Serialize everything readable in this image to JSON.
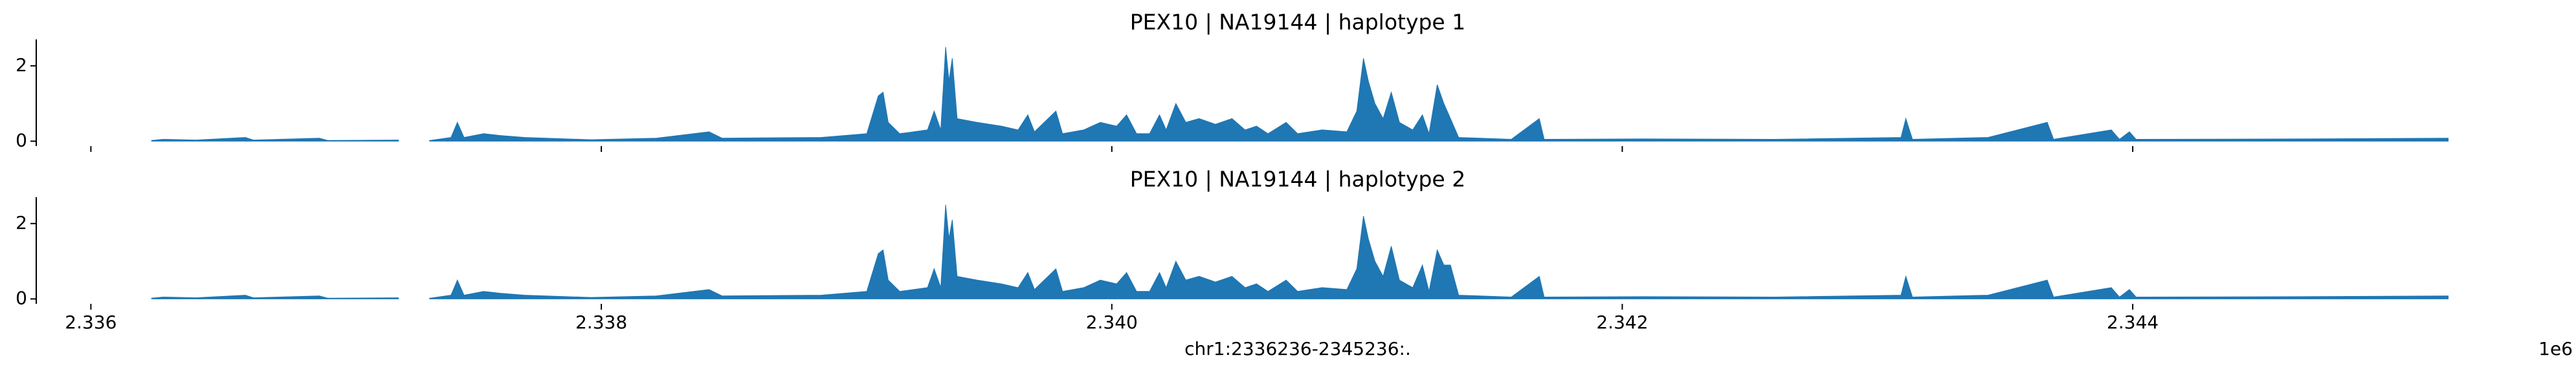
{
  "chart_data": [
    {
      "type": "area",
      "title": "PEX10 | NA19144 | haplotype 1",
      "x": [
        2336238,
        2336283,
        2336412,
        2336605,
        2336638,
        2336895,
        2336928,
        2337205,
        2337266,
        2337327,
        2337411,
        2337436,
        2337462,
        2337539,
        2337604,
        2337700,
        2337958,
        2338216,
        2338422,
        2338473,
        2338860,
        2339040,
        2339085,
        2339104,
        2339124,
        2339169,
        2339278,
        2339304,
        2339330,
        2339349,
        2339362,
        2339375,
        2339394,
        2339472,
        2339568,
        2339633,
        2339671,
        2339697,
        2339781,
        2339807,
        2339890,
        2339955,
        2340019,
        2340058,
        2340097,
        2340148,
        2340187,
        2340213,
        2340251,
        2340290,
        2340342,
        2340406,
        2340471,
        2340522,
        2340567,
        2340612,
        2340683,
        2340728,
        2340824,
        2340921,
        2340960,
        2340986,
        2341005,
        2341031,
        2341063,
        2341095,
        2341127,
        2341179,
        2341217,
        2341243,
        2341275,
        2341301,
        2341327,
        2341359,
        2341565,
        2341675,
        2341694,
        2342080,
        2342596,
        2343092,
        2343111,
        2343137,
        2343433,
        2343665,
        2343690,
        2343916,
        2343948,
        2343987,
        2344013,
        2344657,
        2345236
      ],
      "series": [
        {
          "color": "#1f77b4",
          "values": [
            0.02,
            0.05,
            0.03,
            0.1,
            0.03,
            0.08,
            0.02,
            0.03,
            null,
            0.02,
            0.1,
            0.5,
            0.1,
            0.2,
            0.15,
            0.1,
            0.04,
            0.08,
            0.25,
            0.08,
            0.1,
            0.2,
            1.2,
            1.3,
            0.5,
            0.2,
            0.3,
            0.8,
            0.3,
            2.5,
            1.6,
            2.2,
            0.6,
            0.5,
            0.4,
            0.3,
            0.7,
            0.25,
            0.8,
            0.2,
            0.3,
            0.5,
            0.4,
            0.7,
            0.2,
            0.2,
            0.7,
            0.3,
            1.0,
            0.5,
            0.6,
            0.45,
            0.6,
            0.3,
            0.4,
            0.2,
            0.5,
            0.2,
            0.3,
            0.25,
            0.8,
            2.2,
            1.6,
            1.0,
            0.6,
            1.3,
            0.5,
            0.3,
            0.7,
            0.2,
            1.5,
            1.0,
            0.6,
            0.1,
            0.05,
            0.6,
            0.05,
            0.06,
            0.05,
            0.1,
            0.6,
            0.05,
            0.1,
            0.5,
            0.05,
            0.3,
            0.05,
            0.25,
            0.05,
            0.06,
            0.08
          ]
        }
      ],
      "xlim": [
        2335786,
        2345686
      ],
      "xticks": [
        2336000,
        2338000,
        2340000,
        2342000,
        2344000
      ],
      "ylim": [
        -0.13,
        2.7
      ],
      "yticks": [
        0,
        2
      ]
    },
    {
      "type": "area",
      "title": "PEX10 | NA19144 | haplotype 2",
      "xlabel": "chr1:2336236-2345236:.",
      "x_offset_label": "1e6",
      "x": [
        2336238,
        2336283,
        2336412,
        2336605,
        2336638,
        2336895,
        2336928,
        2337205,
        2337266,
        2337327,
        2337411,
        2337436,
        2337462,
        2337539,
        2337604,
        2337700,
        2337958,
        2338216,
        2338422,
        2338473,
        2338860,
        2339040,
        2339085,
        2339104,
        2339124,
        2339169,
        2339278,
        2339304,
        2339330,
        2339349,
        2339362,
        2339375,
        2339394,
        2339472,
        2339568,
        2339633,
        2339671,
        2339697,
        2339781,
        2339807,
        2339890,
        2339955,
        2340019,
        2340058,
        2340097,
        2340148,
        2340187,
        2340213,
        2340251,
        2340290,
        2340342,
        2340406,
        2340471,
        2340522,
        2340567,
        2340612,
        2340683,
        2340728,
        2340824,
        2340921,
        2340960,
        2340986,
        2341005,
        2341031,
        2341063,
        2341095,
        2341127,
        2341179,
        2341217,
        2341243,
        2341275,
        2341301,
        2341327,
        2341359,
        2341565,
        2341675,
        2341694,
        2342080,
        2342596,
        2343092,
        2343111,
        2343137,
        2343433,
        2343665,
        2343690,
        2343916,
        2343948,
        2343987,
        2344013,
        2344657,
        2345236
      ],
      "series": [
        {
          "color": "#1f77b4",
          "values": [
            0.02,
            0.05,
            0.03,
            0.1,
            0.03,
            0.08,
            0.02,
            0.03,
            null,
            0.02,
            0.1,
            0.5,
            0.1,
            0.2,
            0.15,
            0.1,
            0.04,
            0.08,
            0.25,
            0.08,
            0.1,
            0.2,
            1.2,
            1.3,
            0.5,
            0.2,
            0.3,
            0.8,
            0.3,
            2.5,
            1.6,
            2.1,
            0.6,
            0.5,
            0.4,
            0.3,
            0.7,
            0.25,
            0.8,
            0.2,
            0.3,
            0.5,
            0.4,
            0.7,
            0.2,
            0.2,
            0.7,
            0.3,
            1.0,
            0.5,
            0.6,
            0.45,
            0.6,
            0.3,
            0.4,
            0.2,
            0.5,
            0.2,
            0.3,
            0.25,
            0.8,
            2.2,
            1.6,
            1.0,
            0.6,
            1.4,
            0.5,
            0.3,
            0.9,
            0.2,
            1.3,
            0.9,
            0.9,
            0.1,
            0.05,
            0.6,
            0.05,
            0.06,
            0.05,
            0.1,
            0.6,
            0.05,
            0.1,
            0.5,
            0.05,
            0.3,
            0.05,
            0.25,
            0.05,
            0.06,
            0.08
          ]
        }
      ],
      "xlim": [
        2335786,
        2345686
      ],
      "xticks": [
        {
          "value": 2336000,
          "label": "2.336"
        },
        {
          "value": 2338000,
          "label": "2.338"
        },
        {
          "value": 2340000,
          "label": "2.340"
        },
        {
          "value": 2342000,
          "label": "2.342"
        },
        {
          "value": 2344000,
          "label": "2.344"
        }
      ],
      "ylim": [
        -0.13,
        2.7
      ],
      "yticks": [
        0,
        2
      ]
    }
  ]
}
